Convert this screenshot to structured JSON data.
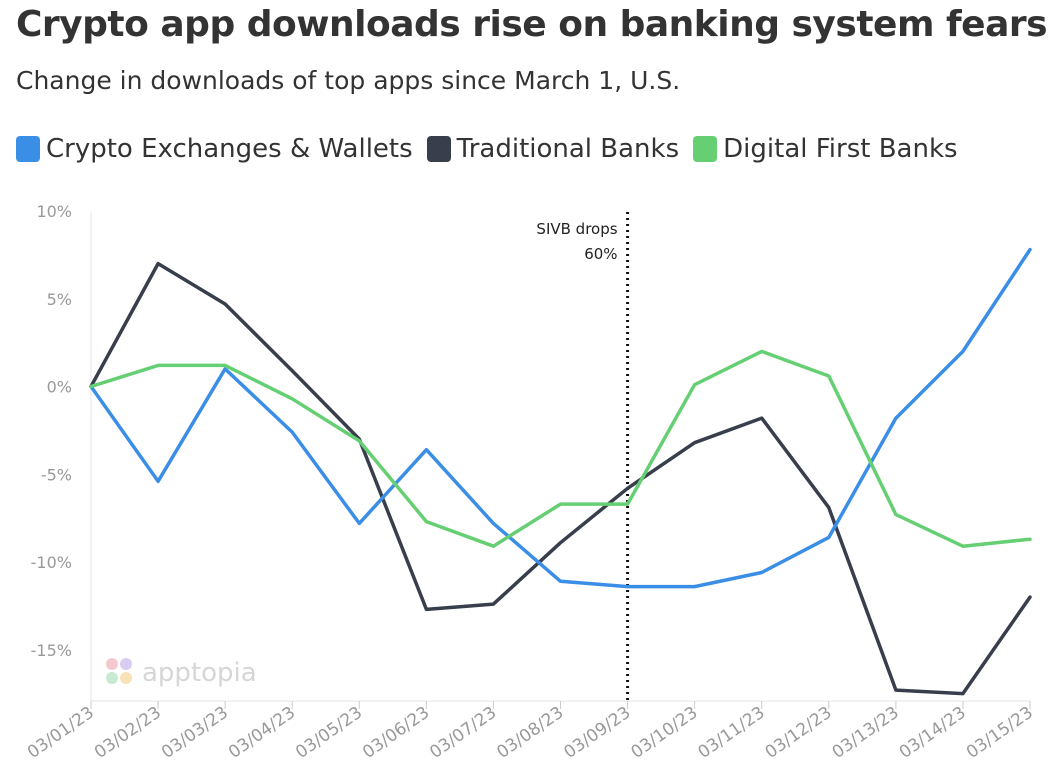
{
  "title": "Crypto app downloads rise on banking system fears",
  "subtitle": "Change in downloads of top apps since March 1, U.S.",
  "watermark": "apptopia",
  "chart_data": {
    "type": "line",
    "title": "Crypto app downloads rise on banking system fears",
    "subtitle": "Change in downloads of top apps since March 1, U.S.",
    "xlabel": "",
    "ylabel": "",
    "x": [
      "03/01/23",
      "03/02/23",
      "03/03/23",
      "03/04/23",
      "03/05/23",
      "03/06/23",
      "03/07/23",
      "03/08/23",
      "03/09/23",
      "03/10/23",
      "03/11/23",
      "03/12/23",
      "03/13/23",
      "03/14/23",
      "03/15/23"
    ],
    "y_ticks": [
      10,
      5,
      0,
      -5,
      -10,
      -15
    ],
    "y_tick_labels": [
      "10%",
      "5%",
      "0%",
      "-5%",
      "-10%",
      "-15%"
    ],
    "ylim": [
      -18,
      10
    ],
    "grid": false,
    "legend_position": "top-left",
    "series": [
      {
        "name": "Crypto Exchanges & Wallets",
        "color": "#3a8ee6",
        "values": [
          0,
          -5.4,
          1.0,
          -2.6,
          -7.8,
          -3.6,
          -7.8,
          -11.1,
          -11.4,
          -11.4,
          -10.6,
          -8.6,
          -1.8,
          2.0,
          7.8
        ]
      },
      {
        "name": "Traditional Banks",
        "color": "#383e4c",
        "values": [
          0,
          7.0,
          4.7,
          0.9,
          -3.0,
          -12.7,
          -12.4,
          -8.9,
          -5.8,
          -3.2,
          -1.8,
          -6.9,
          -17.3,
          -17.5,
          -12.0
        ]
      },
      {
        "name": "Digital First Banks",
        "color": "#66cf74",
        "values": [
          0,
          1.2,
          1.2,
          -0.7,
          -3.1,
          -7.7,
          -9.1,
          -6.7,
          -6.7,
          0.1,
          2.0,
          0.6,
          -7.3,
          -9.1,
          -8.7
        ]
      }
    ],
    "annotation": {
      "x": "03/09/23",
      "text_lines": [
        "SIVB drops",
        "60%"
      ]
    }
  }
}
